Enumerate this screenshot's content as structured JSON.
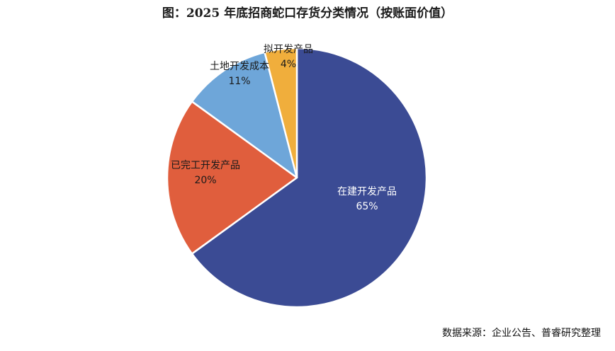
{
  "chart_data": {
    "type": "pie",
    "title": "图：2025 年底招商蛇口存货分类情况（按账面价值）",
    "slices": [
      {
        "label": "在建开发产品",
        "value": 65,
        "value_label": "65%",
        "color": "#3b4b94"
      },
      {
        "label": "已完工开发产品",
        "value": 20,
        "value_label": "20%",
        "color": "#e05e3d"
      },
      {
        "label": "土地开发成本",
        "value": 11,
        "value_label": "11%",
        "color": "#6ea6d9"
      },
      {
        "label": "拟开发产品",
        "value": 4,
        "value_label": "4%",
        "color": "#f0ae3c"
      }
    ],
    "legend": "none"
  },
  "source": "数据来源：企业公告、普睿研究整理"
}
